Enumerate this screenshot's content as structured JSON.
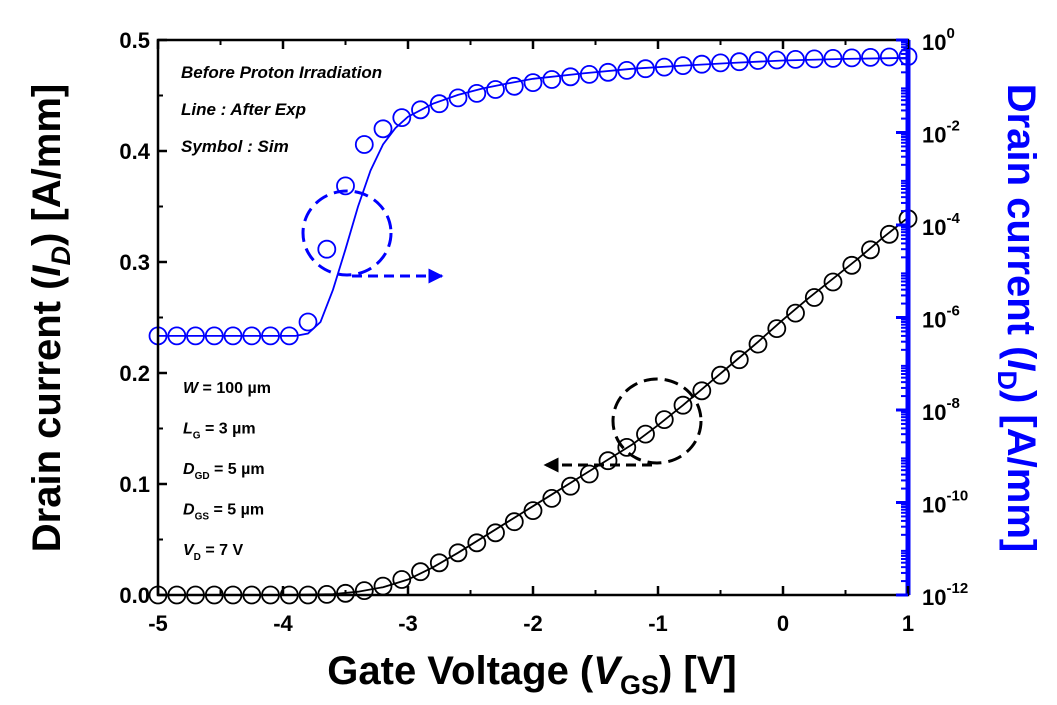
{
  "chart_data": {
    "type": "line",
    "colors": {
      "linear": "#000000",
      "log": "#0000ff"
    },
    "x_axis": {
      "label_main": "Gate Voltage (",
      "label_var": "V",
      "label_sub": "GS",
      "label_unit": ") [V]",
      "range": [
        -5,
        1
      ],
      "ticks": [
        -5,
        -4,
        -3,
        -2,
        -1,
        0,
        1
      ],
      "tick_labels": [
        "-5",
        "-4",
        "-3",
        "-2",
        "-1",
        "0",
        "1"
      ]
    },
    "y_left": {
      "label_main": "Drain current (",
      "label_var": "I",
      "label_sub": "D",
      "label_unit": ") [A/mm]",
      "range": [
        0,
        0.5
      ],
      "scale": "linear",
      "ticks": [
        0.0,
        0.1,
        0.2,
        0.3,
        0.4,
        0.5
      ],
      "tick_labels": [
        "0.0",
        "0.1",
        "0.2",
        "0.3",
        "0.4",
        "0.5"
      ]
    },
    "y_right": {
      "label_main": "Drain current (",
      "label_var": "I",
      "label_sub": "D",
      "label_unit": ") [A/mm]",
      "range": [
        1e-12,
        1
      ],
      "scale": "log",
      "tick_exponents": [
        0,
        -2,
        -4,
        -6,
        -8,
        -10,
        -12
      ],
      "tick_base": "10"
    },
    "annotations": [
      "Before Proton Irradiation",
      "Line : After Exp",
      "Symbol : Sim"
    ],
    "parameters": [
      {
        "var": "W",
        "sub": "",
        "rest": " = 100 µm"
      },
      {
        "var": "L",
        "sub": "G",
        "rest": " = 3 µm"
      },
      {
        "var": "D",
        "sub": "GD",
        "rest": " = 5 µm"
      },
      {
        "var": "D",
        "sub": "GS",
        "rest": " = 5 µm"
      },
      {
        "var": "V",
        "sub": "D",
        "rest": " = 7 V"
      }
    ],
    "series": [
      {
        "axis": "left",
        "style": "line",
        "x": [
          -5,
          -4,
          -3.6,
          -3.4,
          -3.2,
          -3.0,
          -2.8,
          -2.6,
          -2.4,
          -2.2,
          -2.0,
          -1.8,
          -1.6,
          -1.4,
          -1.2,
          -1.0,
          -0.8,
          -0.6,
          -0.4,
          -0.2,
          0.0,
          0.2,
          0.4,
          0.6,
          0.8,
          1.0
        ],
        "y": [
          0,
          0,
          0.0008,
          0.003,
          0.007,
          0.014,
          0.025,
          0.038,
          0.052,
          0.066,
          0.08,
          0.094,
          0.108,
          0.122,
          0.136,
          0.153,
          0.171,
          0.19,
          0.209,
          0.228,
          0.248,
          0.267,
          0.285,
          0.303,
          0.322,
          0.34
        ]
      },
      {
        "axis": "left",
        "style": "markers",
        "x": [
          -5.0,
          -4.85,
          -4.7,
          -4.55,
          -4.4,
          -4.25,
          -4.1,
          -3.95,
          -3.8,
          -3.65,
          -3.5,
          -3.35,
          -3.2,
          -3.05,
          -2.9,
          -2.75,
          -2.6,
          -2.45,
          -2.3,
          -2.15,
          -2.0,
          -1.85,
          -1.7,
          -1.55,
          -1.4,
          -1.25,
          -1.1,
          -0.95,
          -0.8,
          -0.65,
          -0.5,
          -0.35,
          -0.2,
          -0.05,
          0.1,
          0.25,
          0.4,
          0.55,
          0.7,
          0.85,
          1.0
        ],
        "y": [
          0.0,
          0.0,
          0.0,
          0.0,
          0.0,
          0.0,
          0.0,
          0.0,
          0.0,
          0.0005,
          0.0015,
          0.004,
          0.008,
          0.014,
          0.021,
          0.029,
          0.038,
          0.047,
          0.056,
          0.066,
          0.076,
          0.087,
          0.098,
          0.109,
          0.121,
          0.133,
          0.145,
          0.158,
          0.171,
          0.184,
          0.198,
          0.212,
          0.226,
          0.24,
          0.254,
          0.268,
          0.282,
          0.297,
          0.311,
          0.325,
          0.339
        ]
      },
      {
        "axis": "right",
        "style": "line",
        "x": [
          -5,
          -4.6,
          -4.2,
          -3.9,
          -3.8,
          -3.7,
          -3.6,
          -3.5,
          -3.4,
          -3.3,
          -3.2,
          -3.1,
          -3.0,
          -2.8,
          -2.6,
          -2.4,
          -2.2,
          -2.0,
          -1.6,
          -1.2,
          -0.8,
          -0.4,
          0.0,
          0.5,
          1.0
        ],
        "y": [
          4e-07,
          4e-07,
          4e-07,
          4e-07,
          4.5e-07,
          8e-07,
          4e-06,
          3e-05,
          0.00025,
          0.0015,
          0.0055,
          0.0125,
          0.022,
          0.042,
          0.065,
          0.09,
          0.115,
          0.145,
          0.19,
          0.24,
          0.28,
          0.32,
          0.36,
          0.39,
          0.41
        ]
      },
      {
        "axis": "right",
        "style": "markers",
        "x": [
          -5.0,
          -4.85,
          -4.7,
          -4.55,
          -4.4,
          -4.25,
          -4.1,
          -3.95,
          -3.8,
          -3.65,
          -3.5,
          -3.35,
          -3.2,
          -3.05,
          -2.9,
          -2.75,
          -2.6,
          -2.45,
          -2.3,
          -2.15,
          -2.0,
          -1.85,
          -1.7,
          -1.55,
          -1.4,
          -1.25,
          -1.1,
          -0.95,
          -0.8,
          -0.65,
          -0.5,
          -0.35,
          -0.2,
          -0.05,
          0.1,
          0.25,
          0.4,
          0.55,
          0.7,
          0.85,
          1.0
        ],
        "y": [
          4e-07,
          4e-07,
          4e-07,
          4e-07,
          4e-07,
          4e-07,
          4e-07,
          4e-07,
          8e-07,
          3e-05,
          0.0007,
          0.0055,
          0.012,
          0.021,
          0.031,
          0.042,
          0.056,
          0.07,
          0.085,
          0.1,
          0.12,
          0.14,
          0.16,
          0.18,
          0.2,
          0.22,
          0.24,
          0.26,
          0.28,
          0.3,
          0.32,
          0.34,
          0.36,
          0.37,
          0.38,
          0.39,
          0.4,
          0.41,
          0.42,
          0.43,
          0.44
        ]
      }
    ]
  }
}
